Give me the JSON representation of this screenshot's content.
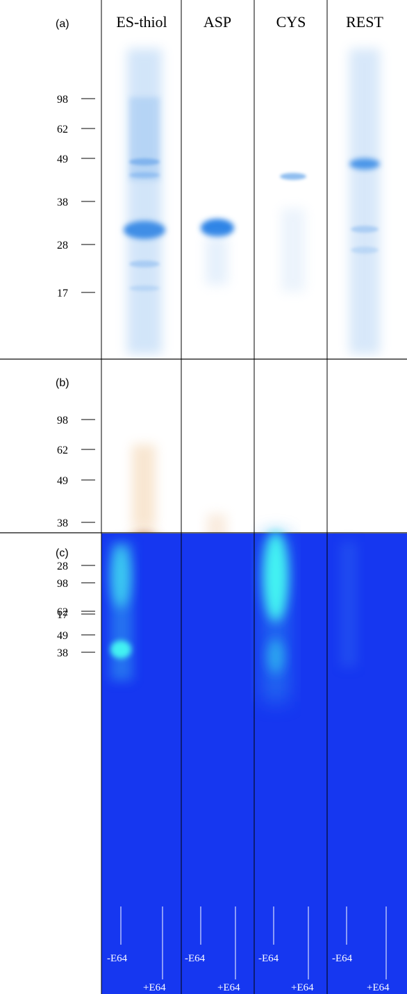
{
  "figure": {
    "lane_headers": [
      "ES-thiol",
      "ASP",
      "CYS",
      "REST"
    ],
    "panels": [
      {
        "label": "(a)",
        "stain": "coomassie",
        "background": "#ffffff",
        "markers": [
          "98",
          "62",
          "49",
          "38",
          "28",
          "17"
        ]
      },
      {
        "label": "(b)",
        "stain": "immunoblot",
        "background": "#ffffff",
        "markers": [
          "98",
          "62",
          "49",
          "38",
          "28",
          "17"
        ]
      },
      {
        "label": "(c)",
        "stain": "zymogram",
        "background": "#1637f0",
        "markers": [
          "98",
          "62",
          "49",
          "38"
        ],
        "lane_labels": [
          "-E64",
          "+E64"
        ]
      }
    ]
  },
  "colors": {
    "coomassie_band": "#3f8ee6",
    "immunoblot_band": "#b8662a",
    "zymogram_background": "#1637f0",
    "zymogram_clearing": "#43f2f2",
    "lane_separator": "#000000",
    "panel_separator": "#333333"
  }
}
